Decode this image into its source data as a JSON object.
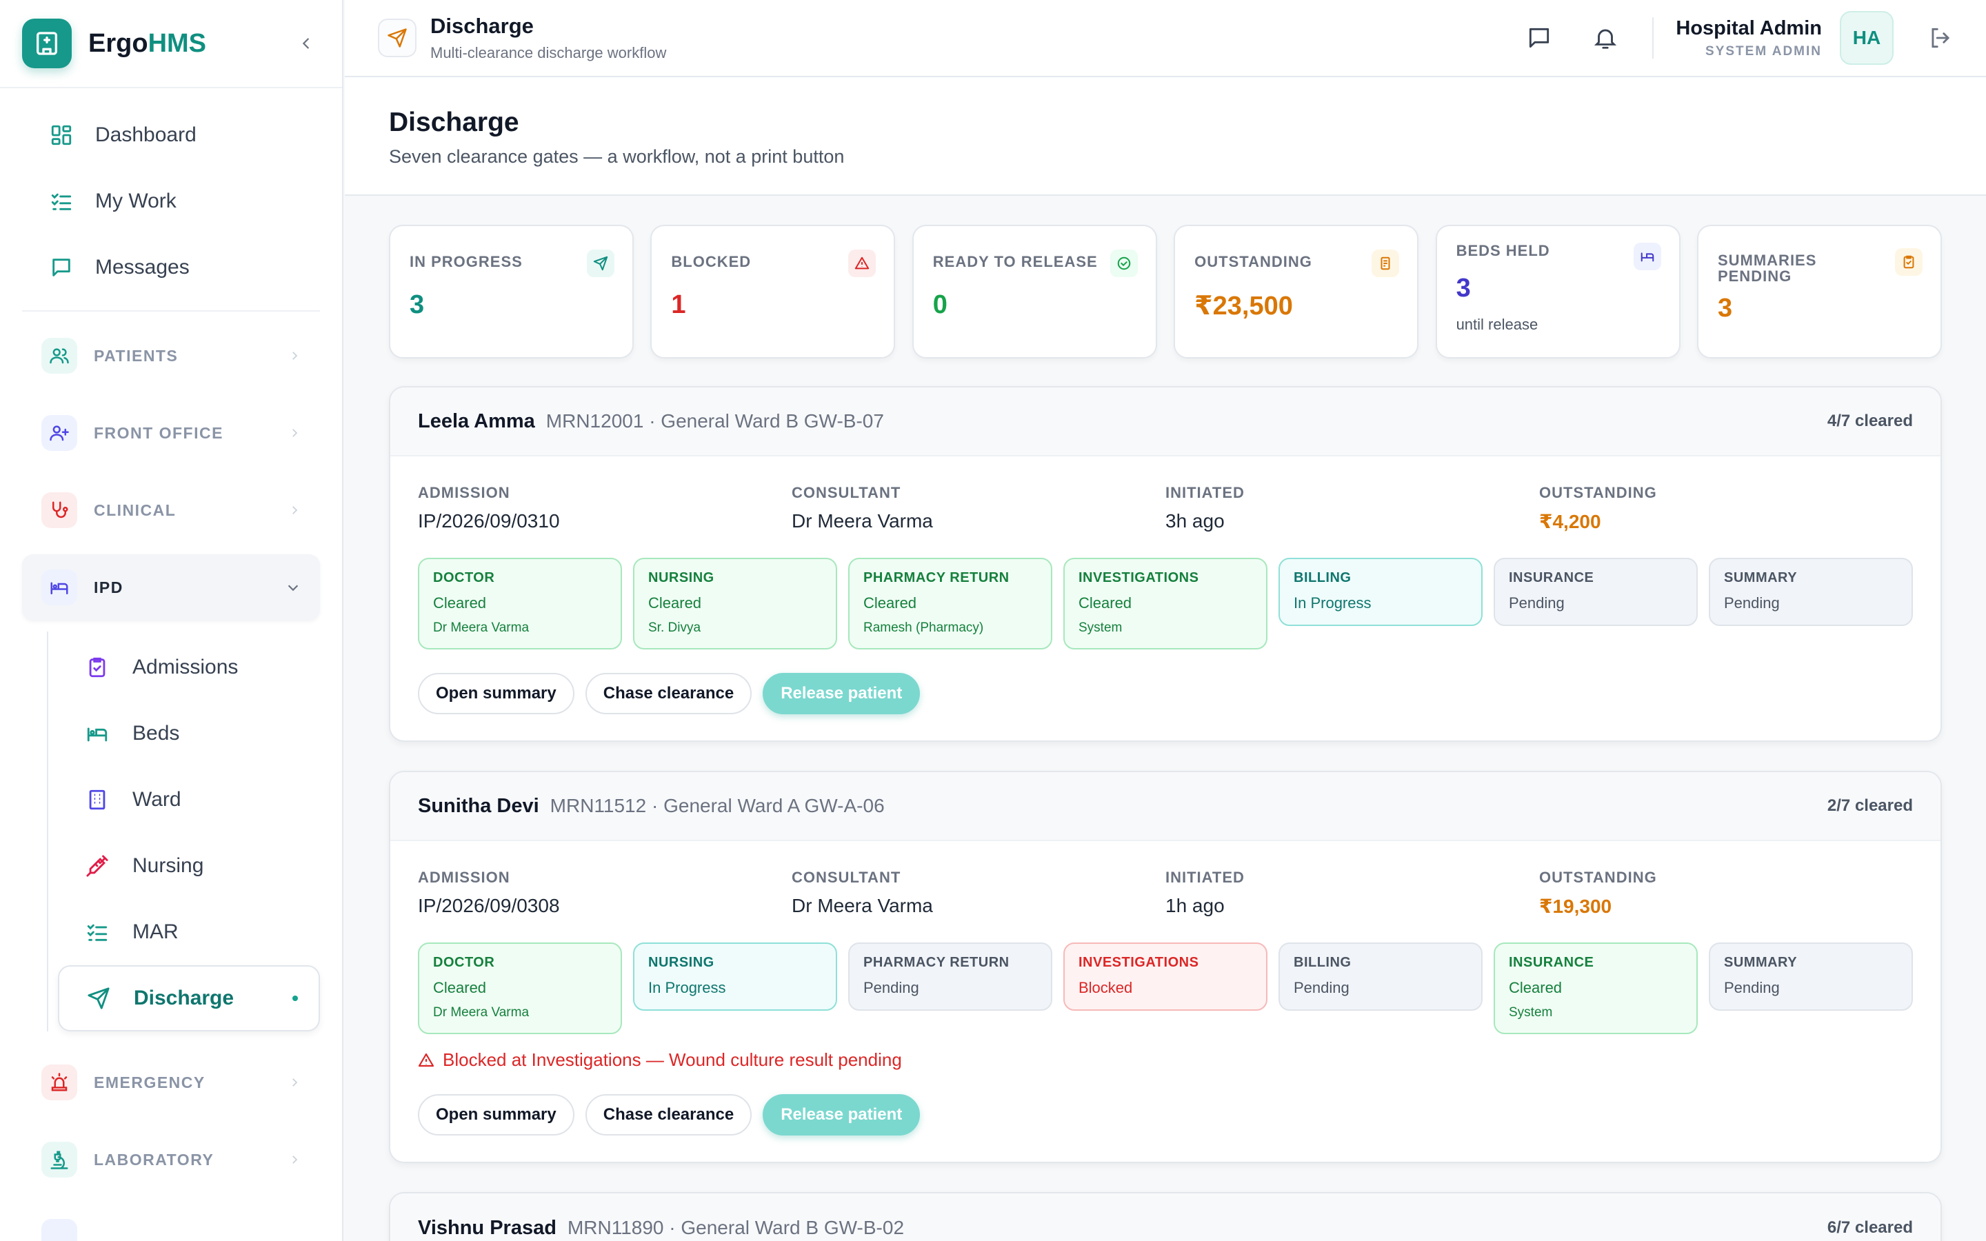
{
  "brand": {
    "name_part1": "Ergo",
    "name_part2": "HMS"
  },
  "nav": {
    "dashboard": "Dashboard",
    "my_work": "My Work",
    "messages": "Messages"
  },
  "sections": {
    "patients": "PATIENTS",
    "front_office": "FRONT OFFICE",
    "clinical": "CLINICAL",
    "ipd": "IPD",
    "emergency": "EMERGENCY",
    "laboratory": "LABORATORY"
  },
  "ipd_items": [
    "Admissions",
    "Beds",
    "Ward",
    "Nursing",
    "MAR",
    "Discharge"
  ],
  "topbar": {
    "title": "Discharge",
    "subtitle": "Multi-clearance discharge workflow",
    "user_name": "Hospital Admin",
    "user_role": "SYSTEM ADMIN",
    "avatar": "HA"
  },
  "page": {
    "title": "Discharge",
    "subtitle": "Seven clearance gates — a workflow, not a print button"
  },
  "stats": [
    {
      "label": "IN PROGRESS",
      "value": "3",
      "color": "#0f8f80",
      "icon": "send-icon"
    },
    {
      "label": "BLOCKED",
      "value": "1",
      "color": "#dc2626",
      "icon": "alert-triangle-icon"
    },
    {
      "label": "READY TO RELEASE",
      "value": "0",
      "color": "#16a34a",
      "icon": "check-circle-icon"
    },
    {
      "label": "OUTSTANDING",
      "value": "₹23,500",
      "color": "#d97706",
      "icon": "receipt-icon"
    },
    {
      "label": "BEDS HELD",
      "value": "3",
      "note": "until release",
      "color": "#4338ca",
      "icon": "bed-icon"
    },
    {
      "label": "SUMMARIES PENDING",
      "value": "3",
      "color": "#d97706",
      "icon": "clipboard-icon"
    }
  ],
  "meta_labels": {
    "admission": "ADMISSION",
    "consultant": "CONSULTANT",
    "initiated": "INITIATED",
    "outstanding": "OUTSTANDING"
  },
  "actions": {
    "open_summary": "Open summary",
    "chase": "Chase clearance",
    "release": "Release patient"
  },
  "patients": [
    {
      "name": "Leela Amma",
      "meta": "MRN12001 · General Ward B GW-B-07",
      "count": "4/7 cleared",
      "admission": "IP/2026/09/0310",
      "consultant": "Dr Meera Varma",
      "initiated": "3h ago",
      "outstanding": "₹4,200",
      "gates": [
        {
          "name": "DOCTOR",
          "status": "Cleared",
          "by": "Dr Meera Varma",
          "state": "cleared"
        },
        {
          "name": "NURSING",
          "status": "Cleared",
          "by": "Sr. Divya",
          "state": "cleared"
        },
        {
          "name": "PHARMACY RETURN",
          "status": "Cleared",
          "by": "Ramesh (Pharmacy)",
          "state": "cleared"
        },
        {
          "name": "INVESTIGATIONS",
          "status": "Cleared",
          "by": "System",
          "state": "cleared"
        },
        {
          "name": "BILLING",
          "status": "In Progress",
          "state": "progress"
        },
        {
          "name": "INSURANCE",
          "status": "Pending",
          "state": "pending"
        },
        {
          "name": "SUMMARY",
          "status": "Pending",
          "state": "pending"
        }
      ]
    },
    {
      "name": "Sunitha Devi",
      "meta": "MRN11512 · General Ward A GW-A-06",
      "count": "2/7 cleared",
      "admission": "IP/2026/09/0308",
      "consultant": "Dr Meera Varma",
      "initiated": "1h ago",
      "outstanding": "₹19,300",
      "blocked_note": "Blocked at Investigations — Wound culture result pending",
      "gates": [
        {
          "name": "DOCTOR",
          "status": "Cleared",
          "by": "Dr Meera Varma",
          "state": "cleared"
        },
        {
          "name": "NURSING",
          "status": "In Progress",
          "state": "progress"
        },
        {
          "name": "PHARMACY RETURN",
          "status": "Pending",
          "state": "pending"
        },
        {
          "name": "INVESTIGATIONS",
          "status": "Blocked",
          "state": "blocked"
        },
        {
          "name": "BILLING",
          "status": "Pending",
          "state": "pending"
        },
        {
          "name": "INSURANCE",
          "status": "Cleared",
          "by": "System",
          "state": "cleared"
        },
        {
          "name": "SUMMARY",
          "status": "Pending",
          "state": "pending"
        }
      ]
    },
    {
      "name": "Vishnu Prasad",
      "meta": "MRN11890 · General Ward B GW-B-02",
      "count": "6/7 cleared"
    }
  ]
}
